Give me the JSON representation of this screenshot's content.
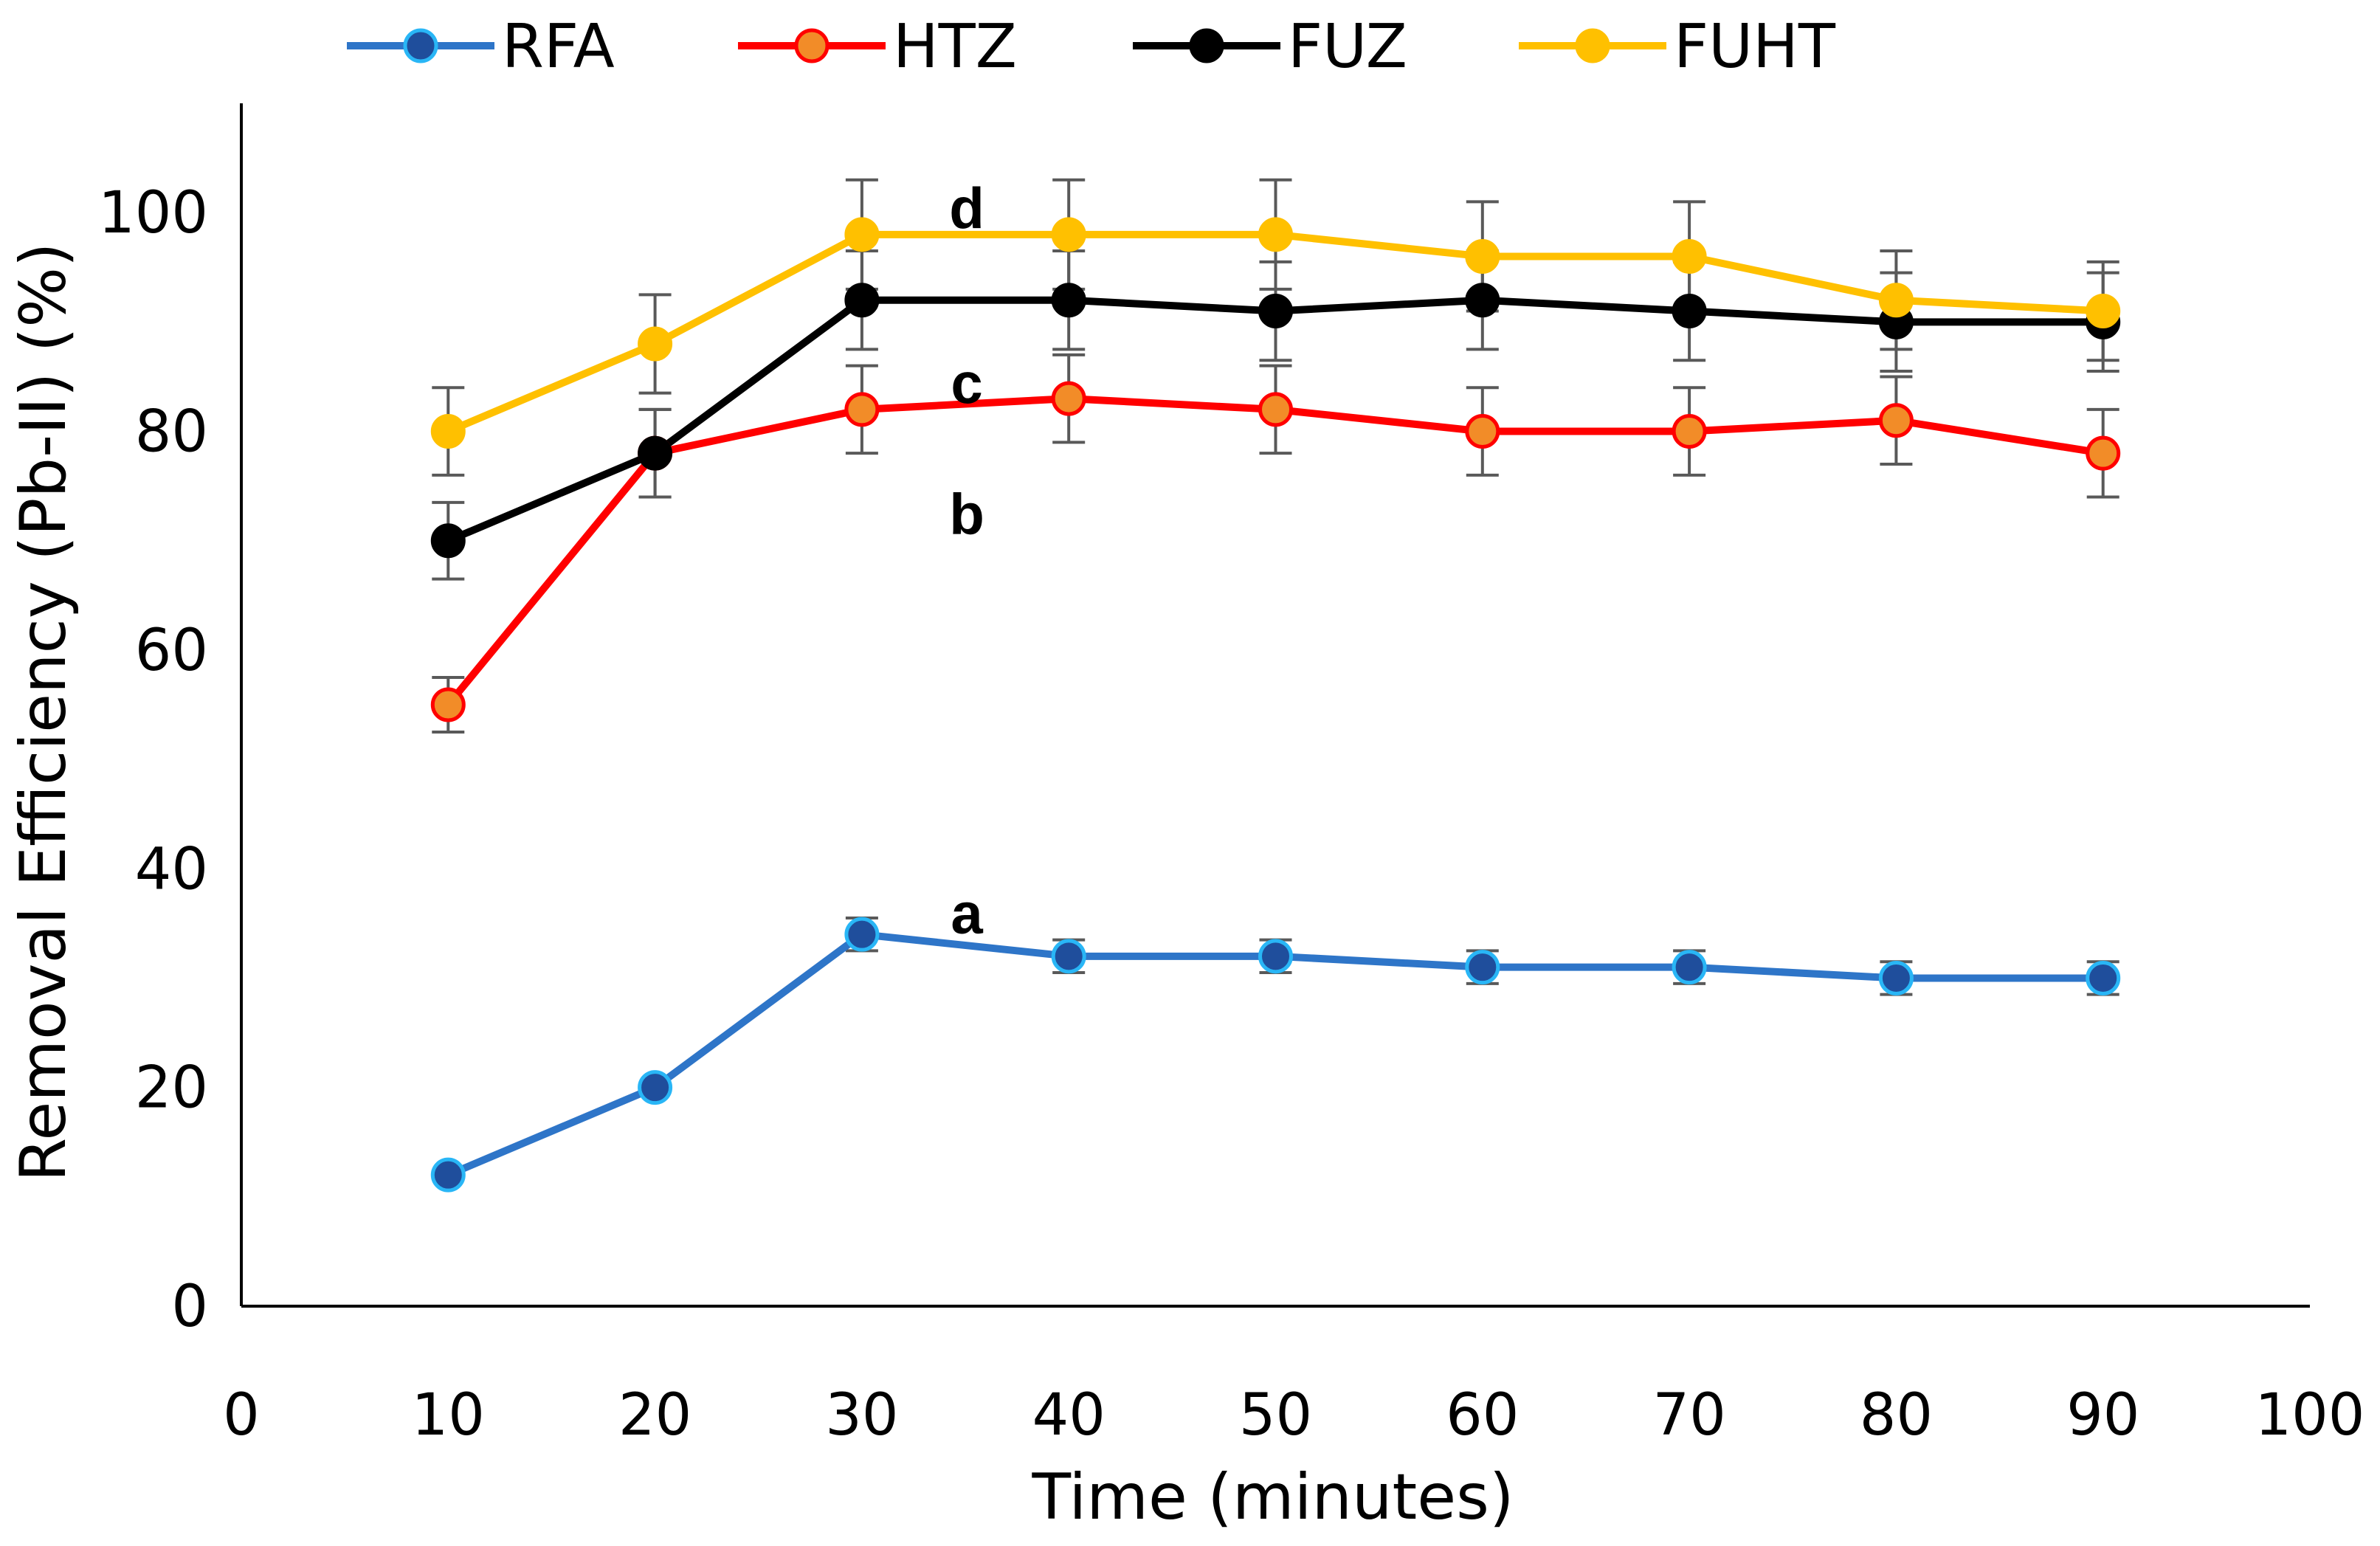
{
  "chart_data": {
    "type": "line",
    "title": "",
    "xlabel": "Time (minutes)",
    "ylabel": "Removal Efficiency (Pb-II) (%)",
    "xlim": [
      0,
      100
    ],
    "ylim": [
      0,
      110
    ],
    "xticks": [
      0,
      10,
      20,
      30,
      40,
      50,
      60,
      70,
      80,
      90,
      100
    ],
    "yticks": [
      0,
      20,
      40,
      60,
      80,
      100
    ],
    "grid": false,
    "legend_position": "top",
    "x": [
      10,
      20,
      30,
      40,
      50,
      60,
      70,
      80,
      90
    ],
    "series": [
      {
        "name": "RFA",
        "color": "#2e75c8",
        "marker_color": "#1f4e9c",
        "marker_edge": "#29b6f6",
        "values": [
          12,
          20,
          34,
          32,
          32,
          31,
          31,
          30,
          30
        ],
        "errors": [
          0,
          0,
          1.5,
          1.5,
          1.5,
          1.5,
          1.5,
          1.5,
          1.5
        ]
      },
      {
        "name": "HTZ",
        "color": "#ff0000",
        "marker_color": "#f28c28",
        "marker_edge": "#ff0000",
        "values": [
          55,
          78,
          82,
          83,
          82,
          80,
          80,
          81,
          78
        ],
        "errors": [
          2.5,
          4,
          4,
          4,
          4,
          4,
          4,
          4,
          4
        ]
      },
      {
        "name": "FUZ",
        "color": "#000000",
        "marker_color": "#000000",
        "marker_edge": "#000000",
        "values": [
          70,
          78,
          92,
          92,
          91,
          92,
          91,
          90,
          90
        ],
        "errors": [
          3.5,
          4,
          4.5,
          4.5,
          4.5,
          4.5,
          4.5,
          4.5,
          4.5
        ]
      },
      {
        "name": "FUHT",
        "color": "#ffc000",
        "marker_color": "#ffc000",
        "marker_edge": "#ffc000",
        "values": [
          80,
          88,
          98,
          98,
          98,
          96,
          96,
          92,
          91
        ],
        "errors": [
          4,
          4.5,
          5,
          5,
          5,
          5,
          5,
          4.5,
          4.5
        ]
      }
    ],
    "annotations": [
      {
        "text": "a",
        "x": 34,
        "y": 36
      },
      {
        "text": "b",
        "x": 34,
        "y": 72.5
      },
      {
        "text": "c",
        "x": 34,
        "y": 84.5
      },
      {
        "text": "d",
        "x": 34,
        "y": 100.5
      }
    ]
  }
}
